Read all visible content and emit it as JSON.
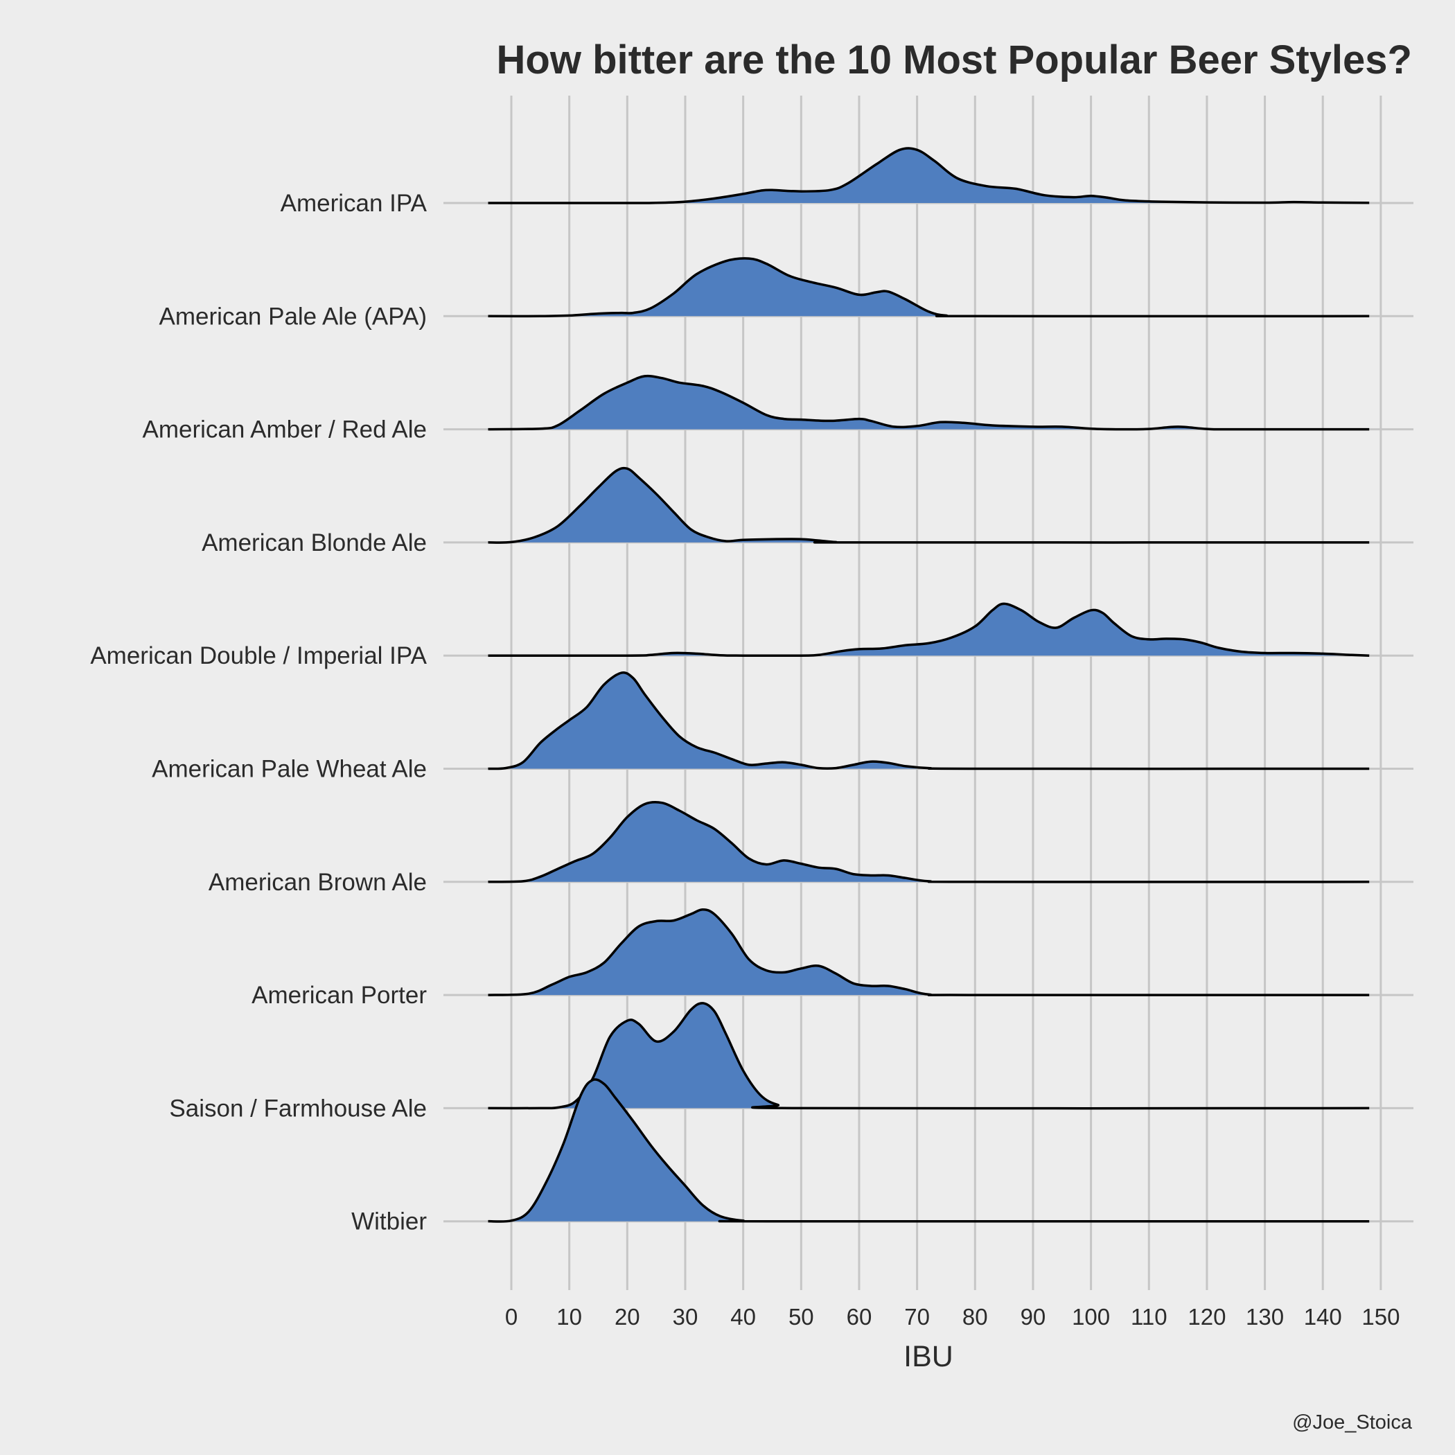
{
  "chart_data": {
    "type": "ridgeline",
    "title": "How bitter are the 10 Most Popular Beer Styles?",
    "xlabel": "IBU",
    "caption": "@Joe_Stoica",
    "xlim": [
      -4,
      148
    ],
    "x_ticks": [
      0,
      10,
      20,
      30,
      40,
      50,
      60,
      70,
      80,
      90,
      100,
      110,
      120,
      130,
      140,
      150
    ],
    "fill_color": "#4f7ebf",
    "line_color": "#000000",
    "background": "#ededed",
    "grid": true,
    "series": [
      {
        "name": "American IPA",
        "points": [
          [
            -4,
            0
          ],
          [
            20,
            0
          ],
          [
            25,
            0.2
          ],
          [
            30,
            2
          ],
          [
            35,
            7
          ],
          [
            40,
            14
          ],
          [
            43,
            19
          ],
          [
            45,
            20
          ],
          [
            50,
            18
          ],
          [
            55,
            20
          ],
          [
            58,
            30
          ],
          [
            63,
            60
          ],
          [
            67,
            82
          ],
          [
            70,
            82
          ],
          [
            73,
            65
          ],
          [
            77,
            38
          ],
          [
            82,
            26
          ],
          [
            87,
            22
          ],
          [
            92,
            12
          ],
          [
            97,
            9
          ],
          [
            100,
            11
          ],
          [
            103,
            8
          ],
          [
            106,
            4
          ],
          [
            112,
            2
          ],
          [
            120,
            1
          ],
          [
            130,
            0.5
          ],
          [
            135,
            1.5
          ],
          [
            140,
            0.8
          ],
          [
            148,
            0.2
          ]
        ]
      },
      {
        "name": "American Pale Ale (APA)",
        "points": [
          [
            -4,
            0
          ],
          [
            5,
            0
          ],
          [
            10,
            1
          ],
          [
            15,
            4
          ],
          [
            19,
            5
          ],
          [
            21,
            5
          ],
          [
            24,
            12
          ],
          [
            28,
            35
          ],
          [
            32,
            65
          ],
          [
            37,
            85
          ],
          [
            41,
            89
          ],
          [
            44,
            81
          ],
          [
            48,
            62
          ],
          [
            52,
            52
          ],
          [
            56,
            44
          ],
          [
            60,
            33
          ],
          [
            63,
            37
          ],
          [
            65,
            38
          ],
          [
            68,
            26
          ],
          [
            72,
            7
          ],
          [
            75,
            1
          ],
          [
            80,
            0
          ],
          [
            148,
            0
          ]
        ]
      },
      {
        "name": "American Amber / Red Ale",
        "points": [
          [
            -4,
            0
          ],
          [
            5,
            1
          ],
          [
            8,
            6
          ],
          [
            12,
            30
          ],
          [
            16,
            55
          ],
          [
            20,
            72
          ],
          [
            23,
            82
          ],
          [
            26,
            79
          ],
          [
            29,
            72
          ],
          [
            33,
            67
          ],
          [
            36,
            58
          ],
          [
            40,
            41
          ],
          [
            44,
            22
          ],
          [
            47,
            16
          ],
          [
            50,
            15
          ],
          [
            55,
            13
          ],
          [
            60,
            16
          ],
          [
            62,
            13
          ],
          [
            66,
            4
          ],
          [
            70,
            5
          ],
          [
            74,
            11
          ],
          [
            78,
            10
          ],
          [
            83,
            6
          ],
          [
            90,
            4
          ],
          [
            95,
            4
          ],
          [
            100,
            1
          ],
          [
            105,
            0
          ],
          [
            110,
            0.5
          ],
          [
            115,
            4
          ],
          [
            120,
            0.5
          ],
          [
            125,
            0
          ],
          [
            148,
            0
          ]
        ]
      },
      {
        "name": "American Blonde Ale",
        "points": [
          [
            -4,
            0
          ],
          [
            0,
            0.5
          ],
          [
            4,
            8
          ],
          [
            8,
            25
          ],
          [
            12,
            58
          ],
          [
            15,
            85
          ],
          [
            18,
            110
          ],
          [
            20,
            114
          ],
          [
            22,
            100
          ],
          [
            25,
            75
          ],
          [
            28,
            47
          ],
          [
            31,
            20
          ],
          [
            34,
            8
          ],
          [
            37,
            2
          ],
          [
            40,
            4
          ],
          [
            45,
            5
          ],
          [
            50,
            5
          ],
          [
            53,
            3
          ],
          [
            56,
            0.5
          ],
          [
            60,
            0
          ],
          [
            148,
            0
          ]
        ]
      },
      {
        "name": "American Double / Imperial IPA",
        "points": [
          [
            -4,
            0
          ],
          [
            20,
            0
          ],
          [
            24,
            1
          ],
          [
            28,
            4
          ],
          [
            32,
            3
          ],
          [
            36,
            0.5
          ],
          [
            40,
            0
          ],
          [
            50,
            0
          ],
          [
            53,
            1
          ],
          [
            57,
            7
          ],
          [
            60,
            10
          ],
          [
            64,
            11
          ],
          [
            68,
            16
          ],
          [
            72,
            19
          ],
          [
            76,
            28
          ],
          [
            80,
            45
          ],
          [
            83,
            70
          ],
          [
            85,
            80
          ],
          [
            88,
            70
          ],
          [
            91,
            52
          ],
          [
            94,
            43
          ],
          [
            97,
            58
          ],
          [
            100,
            70
          ],
          [
            102,
            66
          ],
          [
            104,
            50
          ],
          [
            107,
            30
          ],
          [
            110,
            25
          ],
          [
            113,
            26
          ],
          [
            116,
            25
          ],
          [
            119,
            20
          ],
          [
            122,
            12
          ],
          [
            126,
            6
          ],
          [
            130,
            4
          ],
          [
            135,
            4
          ],
          [
            140,
            3
          ],
          [
            145,
            1
          ],
          [
            148,
            0
          ]
        ]
      },
      {
        "name": "American Pale Wheat Ale",
        "points": [
          [
            -4,
            0
          ],
          [
            -1,
            1
          ],
          [
            2,
            10
          ],
          [
            5,
            40
          ],
          [
            8,
            62
          ],
          [
            10,
            75
          ],
          [
            13,
            95
          ],
          [
            16,
            130
          ],
          [
            19,
            148
          ],
          [
            21,
            140
          ],
          [
            23,
            115
          ],
          [
            26,
            80
          ],
          [
            29,
            50
          ],
          [
            32,
            33
          ],
          [
            35,
            25
          ],
          [
            38,
            15
          ],
          [
            41,
            6
          ],
          [
            44,
            8
          ],
          [
            47,
            10
          ],
          [
            50,
            6
          ],
          [
            53,
            1
          ],
          [
            56,
            1
          ],
          [
            59,
            6
          ],
          [
            62,
            11
          ],
          [
            65,
            9
          ],
          [
            68,
            4
          ],
          [
            72,
            1
          ],
          [
            80,
            0
          ],
          [
            148,
            0
          ]
        ]
      },
      {
        "name": "American Brown Ale",
        "points": [
          [
            -4,
            0
          ],
          [
            2,
            1
          ],
          [
            5,
            8
          ],
          [
            8,
            20
          ],
          [
            11,
            32
          ],
          [
            14,
            43
          ],
          [
            17,
            68
          ],
          [
            20,
            100
          ],
          [
            23,
            120
          ],
          [
            26,
            122
          ],
          [
            29,
            110
          ],
          [
            32,
            95
          ],
          [
            35,
            82
          ],
          [
            38,
            60
          ],
          [
            41,
            36
          ],
          [
            44,
            27
          ],
          [
            47,
            33
          ],
          [
            50,
            28
          ],
          [
            53,
            22
          ],
          [
            56,
            20
          ],
          [
            59,
            12
          ],
          [
            62,
            10
          ],
          [
            65,
            10
          ],
          [
            68,
            6
          ],
          [
            72,
            1
          ],
          [
            80,
            0
          ],
          [
            148,
            0
          ]
        ]
      },
      {
        "name": "American Porter",
        "points": [
          [
            -4,
            0
          ],
          [
            3,
            2
          ],
          [
            7,
            16
          ],
          [
            10,
            28
          ],
          [
            13,
            35
          ],
          [
            16,
            50
          ],
          [
            19,
            80
          ],
          [
            22,
            106
          ],
          [
            25,
            114
          ],
          [
            28,
            115
          ],
          [
            31,
            125
          ],
          [
            33,
            132
          ],
          [
            35,
            125
          ],
          [
            38,
            95
          ],
          [
            41,
            55
          ],
          [
            44,
            38
          ],
          [
            47,
            35
          ],
          [
            50,
            41
          ],
          [
            53,
            45
          ],
          [
            56,
            33
          ],
          [
            59,
            18
          ],
          [
            62,
            14
          ],
          [
            65,
            14
          ],
          [
            68,
            9
          ],
          [
            72,
            1
          ],
          [
            80,
            0
          ],
          [
            148,
            0
          ]
        ]
      },
      {
        "name": "Saison / Farmhouse Ale",
        "points": [
          [
            -4,
            0
          ],
          [
            5,
            0
          ],
          [
            8,
            1
          ],
          [
            11,
            10
          ],
          [
            14,
            45
          ],
          [
            17,
            110
          ],
          [
            20,
            135
          ],
          [
            22,
            130
          ],
          [
            25,
            103
          ],
          [
            28,
            118
          ],
          [
            31,
            152
          ],
          [
            33,
            162
          ],
          [
            35,
            150
          ],
          [
            37,
            115
          ],
          [
            40,
            58
          ],
          [
            43,
            20
          ],
          [
            46,
            5
          ],
          [
            50,
            0
          ],
          [
            148,
            0
          ]
        ]
      },
      {
        "name": "Witbier",
        "points": [
          [
            -4,
            0
          ],
          [
            0,
            1
          ],
          [
            3,
            15
          ],
          [
            6,
            60
          ],
          [
            9,
            120
          ],
          [
            12,
            195
          ],
          [
            14,
            218
          ],
          [
            16,
            212
          ],
          [
            18,
            190
          ],
          [
            21,
            155
          ],
          [
            24,
            118
          ],
          [
            27,
            85
          ],
          [
            30,
            55
          ],
          [
            33,
            25
          ],
          [
            36,
            8
          ],
          [
            40,
            1
          ],
          [
            45,
            0
          ],
          [
            148,
            0
          ]
        ]
      }
    ]
  }
}
